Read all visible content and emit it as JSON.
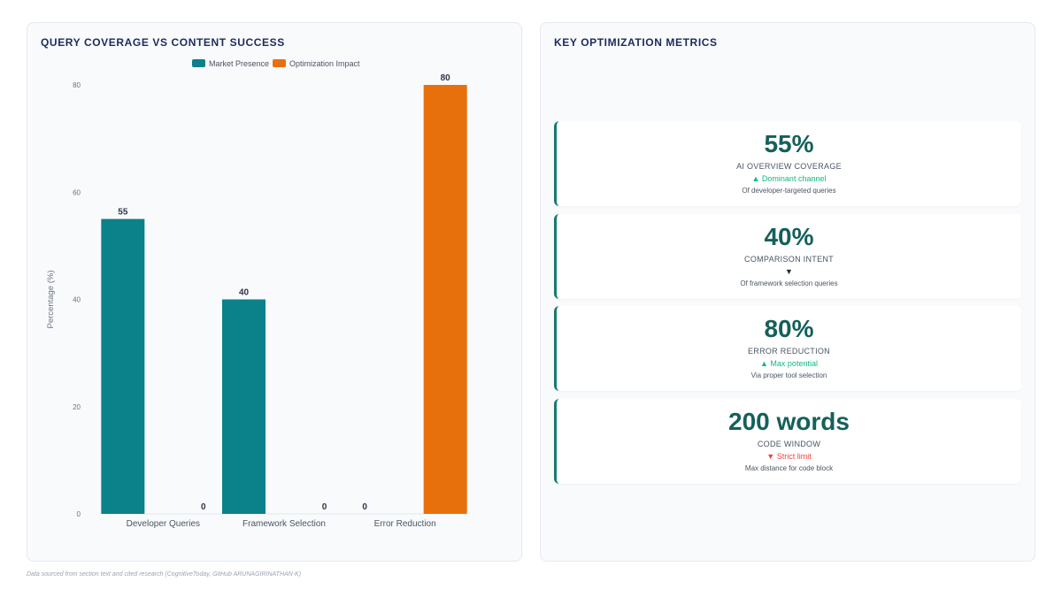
{
  "left_panel": {
    "title": "QUERY COVERAGE VS CONTENT SUCCESS"
  },
  "chart_data": {
    "type": "bar",
    "categories": [
      "Developer Queries",
      "Framework Selection",
      "Error Reduction"
    ],
    "series": [
      {
        "name": "Market Presence",
        "values": [
          55,
          40,
          0
        ],
        "color": "#0b8189"
      },
      {
        "name": "Optimization Impact",
        "values": [
          0,
          0,
          80
        ],
        "color": "#e8700c"
      }
    ],
    "ylabel": "Percentage (%)",
    "xlabel": "",
    "ylim": [
      0,
      80
    ],
    "yticks": [
      0,
      20,
      40,
      60,
      80
    ],
    "legend_position": "top-center",
    "grid": false
  },
  "right_panel": {
    "title": "KEY OPTIMIZATION METRICS",
    "accent_color": "#167a6e",
    "metrics": [
      {
        "value": "55%",
        "label": "AI OVERVIEW COVERAGE",
        "trend": "▲ Dominant channel",
        "trend_color": "#10b981",
        "sub": "Of developer-targeted queries"
      },
      {
        "value": "40%",
        "label": "COMPARISON INTENT",
        "trend": "▼",
        "trend_color": "#1f2937",
        "sub": "Of framework selection queries"
      },
      {
        "value": "80%",
        "label": "ERROR REDUCTION",
        "trend": "▲ Max potential",
        "trend_color": "#10b981",
        "sub": "Via proper tool selection"
      },
      {
        "value": "200 words",
        "label": "CODE WINDOW",
        "trend": "▼ Strict limit",
        "trend_color": "#ef4444",
        "sub": "Max distance for code block"
      }
    ]
  },
  "footer": {
    "note": "Data sourced from section text and cited research (CognitiveToday, GitHub ARUNAGIRINATHAN-K)"
  }
}
